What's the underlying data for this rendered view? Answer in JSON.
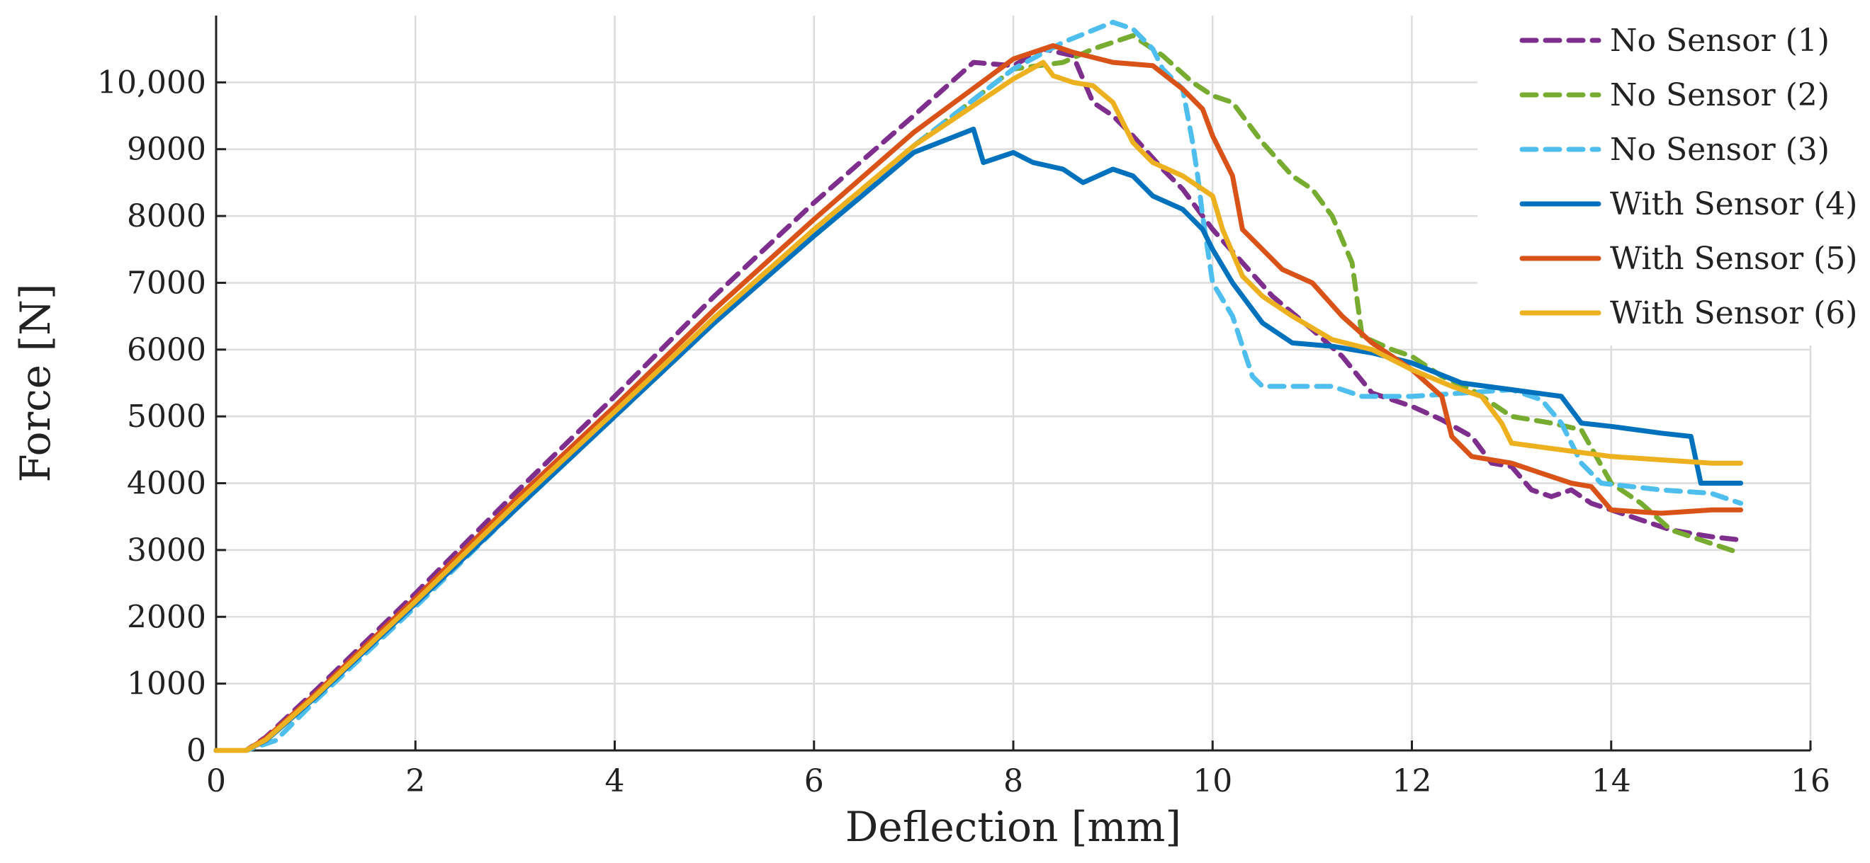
{
  "chart_data": {
    "type": "line",
    "title": "",
    "xlabel": "Deflection [mm]",
    "ylabel": "Force [N]",
    "xlim": [
      0,
      16
    ],
    "ylim": [
      0,
      11000
    ],
    "grid": true,
    "legend_position": "top-right",
    "x_ticks": [
      0,
      2,
      4,
      6,
      8,
      10,
      12,
      14,
      16
    ],
    "x_tick_labels": [
      "0",
      "2",
      "4",
      "6",
      "8",
      "10",
      "12",
      "14",
      "16"
    ],
    "y_ticks": [
      0,
      1000,
      2000,
      3000,
      4000,
      5000,
      6000,
      7000,
      8000,
      9000,
      10000
    ],
    "y_tick_labels": [
      "0",
      "1000",
      "2000",
      "3000",
      "4000",
      "5000",
      "6000",
      "7000",
      "8000",
      "9000",
      "10,000"
    ],
    "series": [
      {
        "name": "No Sensor (1)",
        "color": "#7E2F8E",
        "dash": true,
        "points": [
          [
            0,
            0
          ],
          [
            0.3,
            0
          ],
          [
            0.5,
            200
          ],
          [
            1,
            900
          ],
          [
            2,
            2350
          ],
          [
            3,
            3850
          ],
          [
            4,
            5300
          ],
          [
            5,
            6800
          ],
          [
            6,
            8200
          ],
          [
            7,
            9500
          ],
          [
            7.6,
            10300
          ],
          [
            8,
            10250
          ],
          [
            8.3,
            10500
          ],
          [
            8.6,
            10400
          ],
          [
            8.8,
            9700
          ],
          [
            9,
            9500
          ],
          [
            9.2,
            9200
          ],
          [
            9.5,
            8700
          ],
          [
            9.7,
            8400
          ],
          [
            10,
            7800
          ],
          [
            10.3,
            7300
          ],
          [
            10.6,
            6800
          ],
          [
            11,
            6300
          ],
          [
            11.3,
            5900
          ],
          [
            11.6,
            5350
          ],
          [
            12,
            5150
          ],
          [
            12.3,
            4950
          ],
          [
            12.6,
            4700
          ],
          [
            12.8,
            4300
          ],
          [
            13,
            4250
          ],
          [
            13.2,
            3900
          ],
          [
            13.4,
            3800
          ],
          [
            13.6,
            3900
          ],
          [
            13.8,
            3700
          ],
          [
            14,
            3600
          ],
          [
            14.3,
            3450
          ],
          [
            14.6,
            3300
          ],
          [
            15,
            3200
          ],
          [
            15.3,
            3150
          ]
        ]
      },
      {
        "name": "No Sensor (2)",
        "color": "#77AC30",
        "dash": true,
        "points": [
          [
            0,
            0
          ],
          [
            0.3,
            0
          ],
          [
            0.5,
            150
          ],
          [
            1,
            800
          ],
          [
            2,
            2200
          ],
          [
            3,
            3650
          ],
          [
            4,
            5050
          ],
          [
            5,
            6450
          ],
          [
            6,
            7800
          ],
          [
            7,
            9050
          ],
          [
            8,
            10200
          ],
          [
            8.5,
            10300
          ],
          [
            8.8,
            10500
          ],
          [
            9.2,
            10700
          ],
          [
            9.5,
            10400
          ],
          [
            9.8,
            10000
          ],
          [
            10,
            9800
          ],
          [
            10.2,
            9700
          ],
          [
            10.5,
            9100
          ],
          [
            10.8,
            8600
          ],
          [
            11,
            8400
          ],
          [
            11.2,
            8000
          ],
          [
            11.4,
            7300
          ],
          [
            11.5,
            6200
          ],
          [
            11.8,
            6000
          ],
          [
            12,
            5900
          ],
          [
            12.3,
            5600
          ],
          [
            12.6,
            5400
          ],
          [
            13,
            5000
          ],
          [
            13.4,
            4900
          ],
          [
            13.7,
            4800
          ],
          [
            14,
            4000
          ],
          [
            14.3,
            3700
          ],
          [
            14.6,
            3300
          ],
          [
            15,
            3100
          ],
          [
            15.3,
            2950
          ]
        ]
      },
      {
        "name": "No Sensor (3)",
        "color": "#4DBEEE",
        "dash": true,
        "points": [
          [
            0,
            0
          ],
          [
            0.3,
            0
          ],
          [
            0.6,
            150
          ],
          [
            1,
            750
          ],
          [
            2,
            2150
          ],
          [
            3,
            3600
          ],
          [
            4,
            5000
          ],
          [
            5,
            6400
          ],
          [
            6,
            7750
          ],
          [
            7,
            9050
          ],
          [
            8,
            10200
          ],
          [
            8.5,
            10600
          ],
          [
            9,
            10900
          ],
          [
            9.2,
            10800
          ],
          [
            9.4,
            10500
          ],
          [
            9.5,
            10200
          ],
          [
            9.7,
            9900
          ],
          [
            9.8,
            9100
          ],
          [
            9.85,
            8600
          ],
          [
            9.9,
            8000
          ],
          [
            10,
            7000
          ],
          [
            10.2,
            6500
          ],
          [
            10.4,
            5600
          ],
          [
            10.5,
            5450
          ],
          [
            10.8,
            5450
          ],
          [
            11.2,
            5450
          ],
          [
            11.5,
            5300
          ],
          [
            12,
            5300
          ],
          [
            12.5,
            5350
          ],
          [
            13,
            5400
          ],
          [
            13.3,
            5250
          ],
          [
            13.5,
            4900
          ],
          [
            13.7,
            4300
          ],
          [
            13.9,
            4000
          ],
          [
            14.5,
            3900
          ],
          [
            15,
            3850
          ],
          [
            15.3,
            3700
          ]
        ]
      },
      {
        "name": "With Sensor (4)",
        "color": "#0072BD",
        "dash": false,
        "points": [
          [
            0,
            0
          ],
          [
            0.3,
            0
          ],
          [
            0.5,
            150
          ],
          [
            1,
            800
          ],
          [
            2,
            2200
          ],
          [
            3,
            3600
          ],
          [
            4,
            5000
          ],
          [
            5,
            6400
          ],
          [
            6,
            7700
          ],
          [
            7,
            8950
          ],
          [
            7.6,
            9300
          ],
          [
            7.7,
            8800
          ],
          [
            8,
            8950
          ],
          [
            8.2,
            8800
          ],
          [
            8.5,
            8700
          ],
          [
            8.7,
            8500
          ],
          [
            9,
            8700
          ],
          [
            9.2,
            8600
          ],
          [
            9.4,
            8300
          ],
          [
            9.7,
            8100
          ],
          [
            9.9,
            7800
          ],
          [
            10,
            7500
          ],
          [
            10.2,
            7000
          ],
          [
            10.5,
            6400
          ],
          [
            10.8,
            6100
          ],
          [
            11.2,
            6050
          ],
          [
            11.6,
            5950
          ],
          [
            12,
            5800
          ],
          [
            12.5,
            5500
          ],
          [
            13,
            5400
          ],
          [
            13.5,
            5300
          ],
          [
            13.7,
            4900
          ],
          [
            14,
            4850
          ],
          [
            14.5,
            4750
          ],
          [
            14.8,
            4700
          ],
          [
            14.9,
            4000
          ],
          [
            15.3,
            4000
          ]
        ]
      },
      {
        "name": "With Sensor (5)",
        "color": "#D95319",
        "dash": false,
        "points": [
          [
            0,
            0
          ],
          [
            0.3,
            0
          ],
          [
            0.5,
            180
          ],
          [
            1,
            850
          ],
          [
            2,
            2280
          ],
          [
            3,
            3750
          ],
          [
            4,
            5150
          ],
          [
            5,
            6600
          ],
          [
            6,
            7950
          ],
          [
            7,
            9250
          ],
          [
            8,
            10350
          ],
          [
            8.4,
            10550
          ],
          [
            8.6,
            10450
          ],
          [
            9,
            10300
          ],
          [
            9.4,
            10250
          ],
          [
            9.7,
            9900
          ],
          [
            9.9,
            9600
          ],
          [
            10,
            9200
          ],
          [
            10.2,
            8600
          ],
          [
            10.3,
            7800
          ],
          [
            10.5,
            7500
          ],
          [
            10.7,
            7200
          ],
          [
            11,
            7000
          ],
          [
            11.3,
            6500
          ],
          [
            11.6,
            6100
          ],
          [
            12,
            5700
          ],
          [
            12.3,
            5300
          ],
          [
            12.4,
            4700
          ],
          [
            12.6,
            4400
          ],
          [
            13,
            4300
          ],
          [
            13.3,
            4150
          ],
          [
            13.6,
            4000
          ],
          [
            13.8,
            3950
          ],
          [
            14,
            3600
          ],
          [
            14.5,
            3550
          ],
          [
            15,
            3600
          ],
          [
            15.3,
            3600
          ]
        ]
      },
      {
        "name": "With Sensor (6)",
        "color": "#EDB120",
        "dash": false,
        "points": [
          [
            0,
            0
          ],
          [
            0.3,
            0
          ],
          [
            0.5,
            160
          ],
          [
            1,
            820
          ],
          [
            2,
            2230
          ],
          [
            3,
            3680
          ],
          [
            4,
            5070
          ],
          [
            5,
            6480
          ],
          [
            6,
            7800
          ],
          [
            7,
            9050
          ],
          [
            8,
            10050
          ],
          [
            8.3,
            10300
          ],
          [
            8.4,
            10100
          ],
          [
            8.6,
            10000
          ],
          [
            8.8,
            9950
          ],
          [
            9,
            9700
          ],
          [
            9.2,
            9100
          ],
          [
            9.4,
            8800
          ],
          [
            9.7,
            8600
          ],
          [
            10,
            8300
          ],
          [
            10.1,
            7800
          ],
          [
            10.3,
            7100
          ],
          [
            10.5,
            6800
          ],
          [
            10.8,
            6500
          ],
          [
            11.2,
            6150
          ],
          [
            11.6,
            6000
          ],
          [
            12,
            5700
          ],
          [
            12.4,
            5450
          ],
          [
            12.7,
            5300
          ],
          [
            12.9,
            4900
          ],
          [
            13,
            4600
          ],
          [
            13.5,
            4500
          ],
          [
            14,
            4400
          ],
          [
            14.5,
            4350
          ],
          [
            15,
            4300
          ],
          [
            15.3,
            4300
          ]
        ]
      }
    ]
  }
}
